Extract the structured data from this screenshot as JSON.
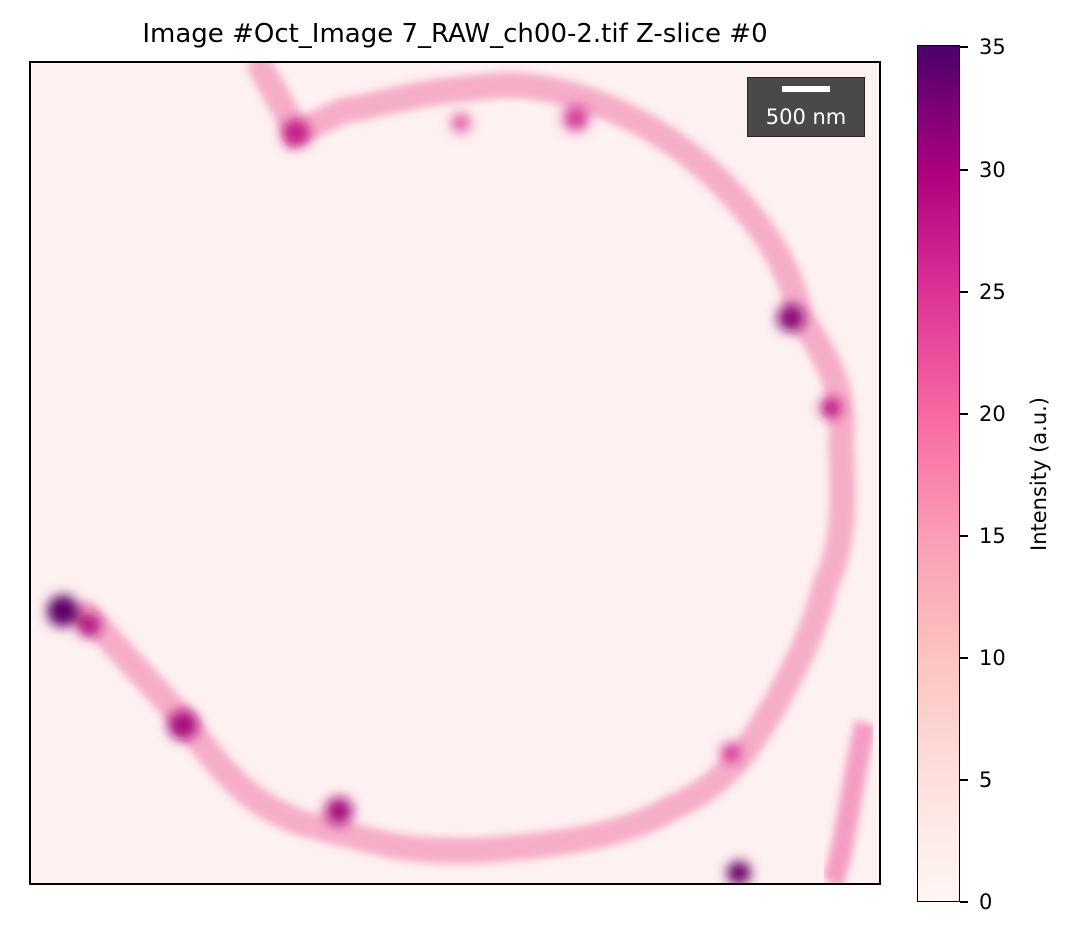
{
  "title": "Image #Oct_Image 7_RAW_ch00-2.tif Z-slice #0",
  "scale_bar": {
    "label": "500 nm"
  },
  "colorbar": {
    "label": "Intensity (a.u.)",
    "range": [
      0,
      35
    ],
    "ticks": [
      "0",
      "5",
      "10",
      "15",
      "20",
      "25",
      "30",
      "35"
    ],
    "colormap": "RdPu",
    "colors": [
      "#fff7f3",
      "#fde0dd",
      "#fcc5c0",
      "#fa9fb5",
      "#f768a1",
      "#dd3497",
      "#ae017e",
      "#7a0177",
      "#49006a"
    ]
  },
  "image": {
    "content": "fluorescence micrograph of a ring-shaped membrane with bright punctate spots",
    "background_color": "#fef1f1",
    "ring_color": "#f49cc0",
    "hotspot_color": "#6a0068"
  }
}
